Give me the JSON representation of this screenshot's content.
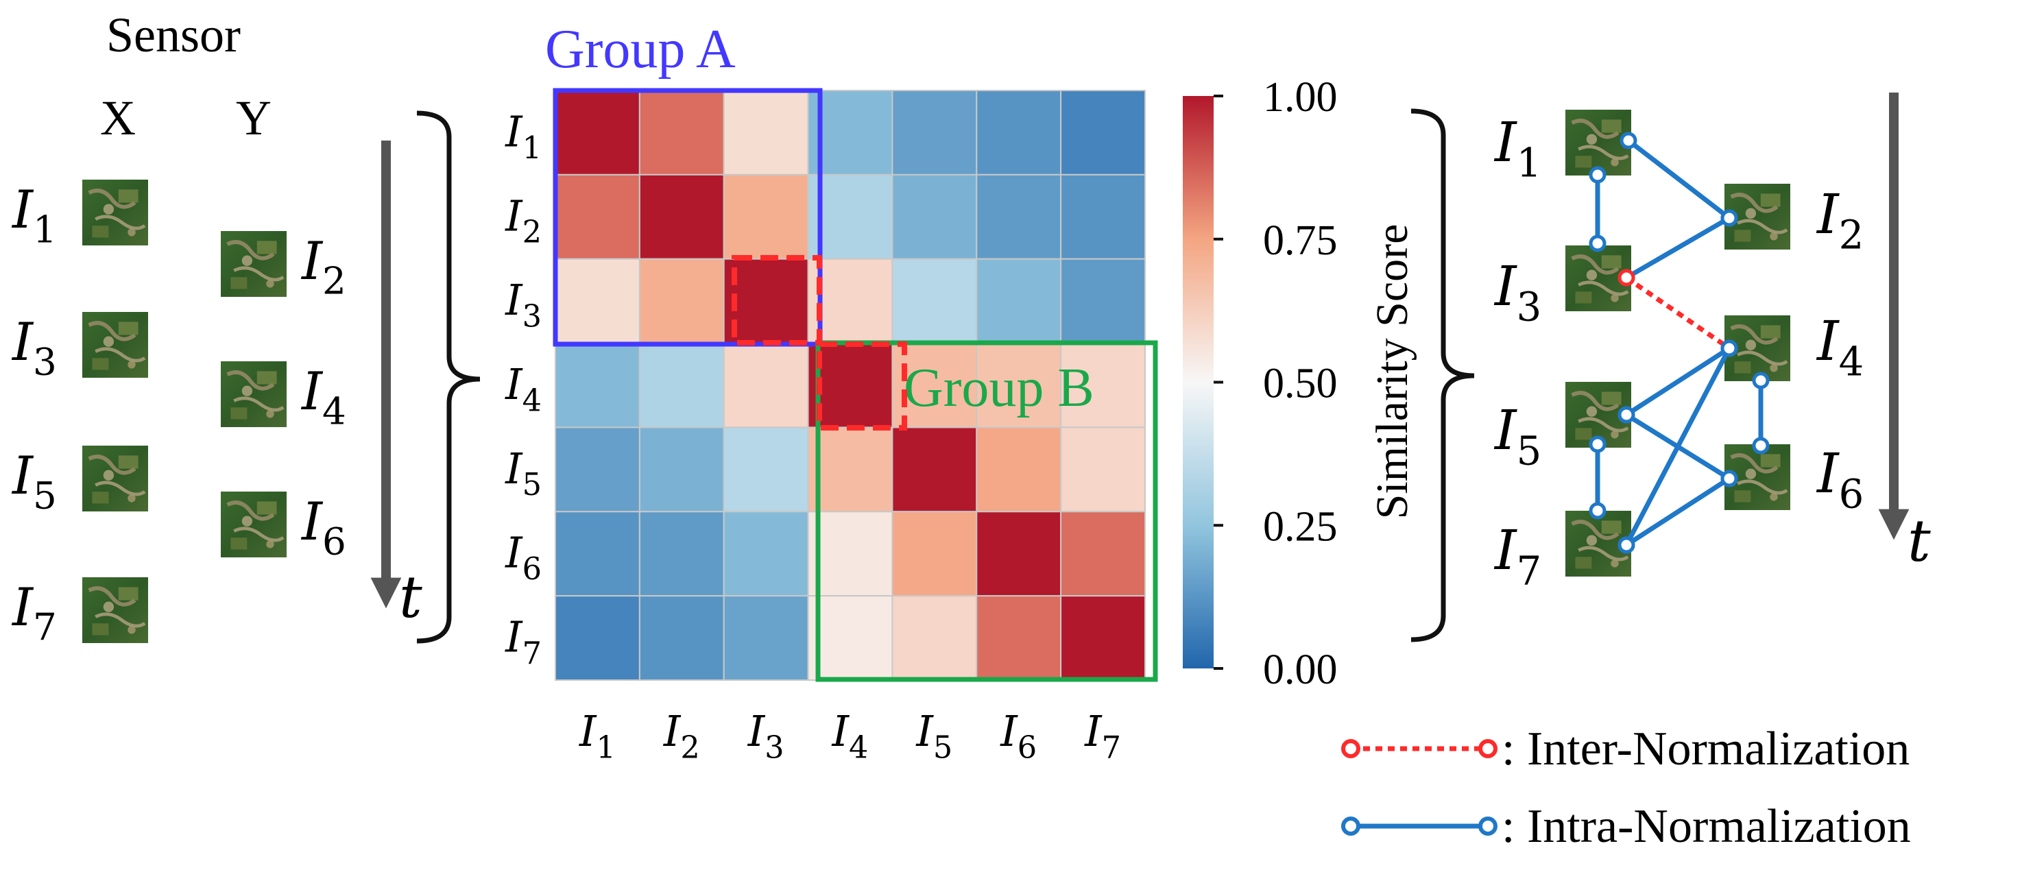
{
  "sensor": {
    "title": "Sensor",
    "col_x": "X",
    "col_y": "Y",
    "x_images": [
      {
        "sym": "I",
        "sub": "1"
      },
      {
        "sym": "I",
        "sub": "3"
      },
      {
        "sym": "I",
        "sub": "5"
      },
      {
        "sym": "I",
        "sub": "7"
      }
    ],
    "y_images": [
      {
        "sym": "I",
        "sub": "2"
      },
      {
        "sym": "I",
        "sub": "4"
      },
      {
        "sym": "I",
        "sub": "6"
      }
    ],
    "time_label": "t"
  },
  "matrix": {
    "group_a_label": "Group A",
    "group_b_label": "Group B",
    "group_a_color": "#4338ff",
    "group_b_color": "#1aa84a",
    "dash_red": "#ff2a2a",
    "dash_green": "#1aa84a",
    "rows": [
      {
        "sym": "I",
        "sub": "1"
      },
      {
        "sym": "I",
        "sub": "2"
      },
      {
        "sym": "I",
        "sub": "3"
      },
      {
        "sym": "I",
        "sub": "4"
      },
      {
        "sym": "I",
        "sub": "5"
      },
      {
        "sym": "I",
        "sub": "6"
      },
      {
        "sym": "I",
        "sub": "7"
      }
    ],
    "cols": [
      {
        "sym": "I",
        "sub": "1"
      },
      {
        "sym": "I",
        "sub": "2"
      },
      {
        "sym": "I",
        "sub": "3"
      },
      {
        "sym": "I",
        "sub": "4"
      },
      {
        "sym": "I",
        "sub": "5"
      },
      {
        "sym": "I",
        "sub": "6"
      },
      {
        "sym": "I",
        "sub": "7"
      }
    ],
    "values": [
      [
        1.0,
        0.85,
        0.58,
        0.22,
        0.15,
        0.12,
        0.08
      ],
      [
        0.85,
        1.0,
        0.72,
        0.32,
        0.2,
        0.14,
        0.12
      ],
      [
        0.58,
        0.72,
        1.0,
        0.6,
        0.34,
        0.22,
        0.14
      ],
      [
        0.22,
        0.32,
        0.6,
        1.0,
        0.68,
        0.66,
        0.6
      ],
      [
        0.15,
        0.2,
        0.34,
        0.68,
        1.0,
        0.74,
        0.6
      ],
      [
        0.12,
        0.14,
        0.22,
        0.55,
        0.74,
        1.0,
        0.85
      ],
      [
        0.08,
        0.12,
        0.16,
        0.54,
        0.6,
        0.85,
        1.0
      ]
    ]
  },
  "colorbar": {
    "title": "Similarity Score",
    "ticks": [
      "1.00",
      "0.75",
      "0.50",
      "0.25",
      "0.00"
    ],
    "low_color": "#2166ac",
    "mid_color": "#f7f7f7",
    "high_color": "#b2182b"
  },
  "graph": {
    "left_nodes": [
      {
        "sym": "I",
        "sub": "1"
      },
      {
        "sym": "I",
        "sub": "3"
      },
      {
        "sym": "I",
        "sub": "5"
      },
      {
        "sym": "I",
        "sub": "7"
      }
    ],
    "right_nodes": [
      {
        "sym": "I",
        "sub": "2"
      },
      {
        "sym": "I",
        "sub": "4"
      },
      {
        "sym": "I",
        "sub": "6"
      }
    ],
    "time_label": "t",
    "intra_color": "#1f78c8",
    "inter_color": "#ff2a2a"
  },
  "legend": {
    "inter_label": ": Inter-Normalization",
    "intra_label": ": Intra-Normalization"
  }
}
